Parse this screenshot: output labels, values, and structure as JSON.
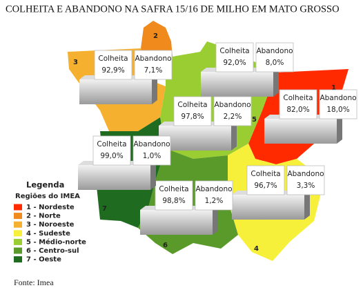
{
  "title": "COLHEITA E ABANDONO NA SAFRA 15/16 DE MILHO EM MATO GROSSO",
  "box_labels": {
    "harvest": "Colheita",
    "abandon": "Abandono"
  },
  "legend": {
    "title": "Legenda",
    "subtitle": "Regiões do IMEA"
  },
  "regions": [
    {
      "number": "1",
      "legend_label": "1 - Nordeste",
      "color": "#ff2a00",
      "harvest": "82,0%",
      "abandon": "18,0%"
    },
    {
      "number": "2",
      "legend_label": "2 - Norte",
      "color": "#f08a1c",
      "harvest": "92,0%",
      "abandon": "8,0%"
    },
    {
      "number": "3",
      "legend_label": "3 - Noroeste",
      "color": "#f5b030",
      "harvest": "92,9%",
      "abandon": "7,1%"
    },
    {
      "number": "4",
      "legend_label": "4 - Sudeste",
      "color": "#f7f03a",
      "harvest": "96,7%",
      "abandon": "3,3%"
    },
    {
      "number": "5",
      "legend_label": "5 - Médio-norte",
      "color": "#9acd32",
      "harvest": "97,8%",
      "abandon": "2,2%"
    },
    {
      "number": "6",
      "legend_label": "6 - Centro-sul",
      "color": "#5a9a2a",
      "harvest": "98,8%",
      "abandon": "1,2%"
    },
    {
      "number": "7",
      "legend_label": "7 - Oeste",
      "color": "#1f6b1f",
      "harvest": "99,0%",
      "abandon": "1,0%"
    }
  ],
  "source": "Fonte: Imea"
}
